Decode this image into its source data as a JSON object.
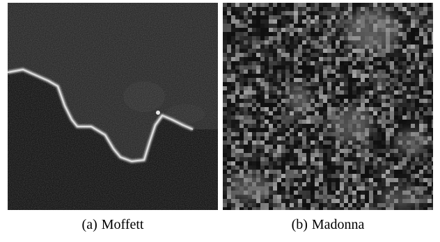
{
  "figure": {
    "panels": [
      {
        "tag": "(a)",
        "name": "Moffett"
      },
      {
        "tag": "(b)",
        "name": "Madonna"
      }
    ]
  }
}
